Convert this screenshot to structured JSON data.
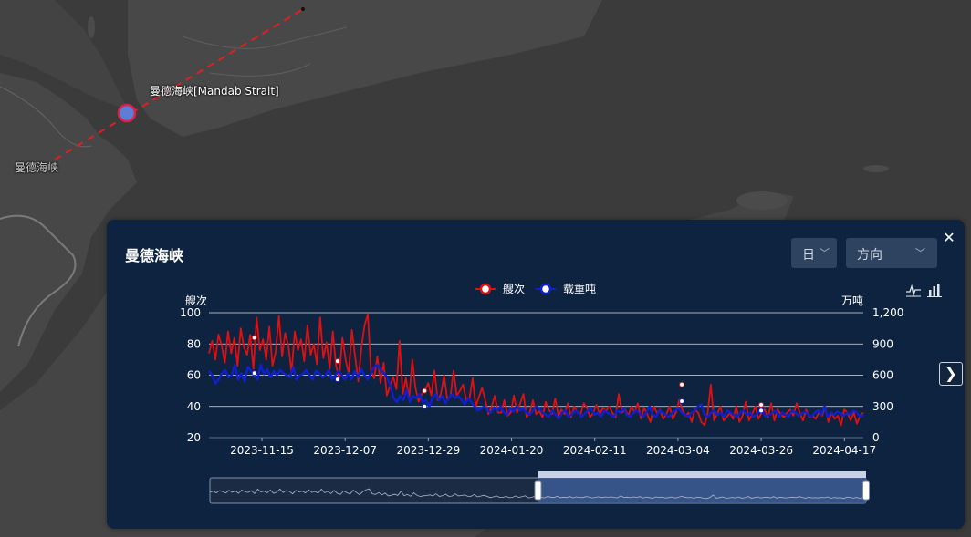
{
  "map": {
    "strait_label": "曼德海峡[Mandab Strait]",
    "region_label": "曼德海峡"
  },
  "panel": {
    "title": "曼德海峡",
    "period_select": {
      "value": "日"
    },
    "direction_select": {
      "placeholder": "方向"
    },
    "close_icon": "close-icon",
    "next_icon": "chevron-right-icon",
    "toolbar": [
      "line-chart-icon",
      "bar-chart-icon"
    ]
  },
  "colors": {
    "ships": "#e01010",
    "tonnage": "#1020d0",
    "panel_bg": "#0d2340"
  },
  "chart_data": {
    "type": "line",
    "legend": [
      "艘次",
      "载重吨"
    ],
    "legend_placement": "top-center",
    "y_left_label": "艘次",
    "y_right_label": "万吨",
    "y_left_ticks": [
      "100",
      "80",
      "60",
      "40",
      "20"
    ],
    "y_right_ticks": [
      "1,200",
      "900",
      "600",
      "300",
      "0"
    ],
    "ylim_left": [
      20,
      100
    ],
    "ylim_right": [
      0,
      1200
    ],
    "x_ticks": [
      "2023-11-15",
      "2023-12-07",
      "2023-12-29",
      "2024-01-20",
      "2024-02-11",
      "2024-03-04",
      "2024-03-26",
      "2024-04-17"
    ],
    "x_range": [
      "2023-11-01",
      "2024-04-22"
    ],
    "grid": true,
    "series": [
      {
        "name": "艘次",
        "axis": "left",
        "values": [
          74,
          82,
          70,
          86,
          79,
          68,
          88,
          74,
          84,
          66,
          90,
          78,
          73,
          86,
          64,
          97,
          76,
          83,
          70,
          91,
          66,
          75,
          98,
          72,
          87,
          79,
          62,
          88,
          76,
          83,
          69,
          92,
          73,
          80,
          67,
          97,
          71,
          81,
          64,
          88,
          66,
          58,
          84,
          70,
          61,
          89,
          72,
          56,
          78,
          92,
          99,
          63,
          58,
          72,
          55,
          68,
          47,
          53,
          59,
          51,
          82,
          48,
          58,
          45,
          70,
          52,
          43,
          48,
          50,
          55,
          47,
          63,
          44,
          48,
          60,
          45,
          46,
          63,
          47,
          50,
          54,
          44,
          45,
          58,
          40,
          46,
          52,
          44,
          35,
          40,
          47,
          36,
          36,
          44,
          34,
          36,
          47,
          36,
          42,
          48,
          33,
          36,
          44,
          35,
          37,
          33,
          43,
          38,
          35,
          45,
          34,
          38,
          35,
          42,
          33,
          40,
          36,
          35,
          42,
          39,
          33,
          36,
          41,
          35,
          39,
          37,
          40,
          36,
          33,
          48,
          36,
          38,
          34,
          40,
          36,
          42,
          32,
          39,
          35,
          30,
          40,
          36,
          38,
          32,
          35,
          40,
          32,
          36,
          44,
          38,
          34,
          36,
          30,
          38,
          36,
          30,
          28,
          36,
          54,
          31,
          35,
          40,
          31,
          33,
          36,
          32,
          40,
          30,
          34,
          43,
          31,
          35,
          40,
          32,
          36,
          38,
          33,
          42,
          31,
          38,
          35,
          33,
          36,
          38,
          34,
          42,
          36,
          31,
          38,
          33,
          34,
          32,
          36,
          34,
          40,
          30,
          36,
          32,
          34,
          28,
          38,
          36,
          31,
          36,
          29,
          34,
          36
        ]
      },
      {
        "name": "载重吨",
        "axis": "right",
        "values": [
          640,
          600,
          520,
          560,
          620,
          650,
          580,
          600,
          700,
          560,
          620,
          540,
          680,
          640,
          600,
          560,
          700,
          610,
          660,
          580,
          640,
          600,
          650,
          620,
          600,
          580,
          680,
          560,
          600,
          610,
          650,
          600,
          560,
          640,
          620,
          580,
          600,
          650,
          560,
          600,
          640,
          600,
          560,
          620,
          560,
          640,
          580,
          660,
          600,
          560,
          620,
          680,
          700,
          650,
          620,
          580,
          500,
          380,
          340,
          400,
          360,
          460,
          340,
          400,
          380,
          420,
          340,
          360,
          300,
          380,
          420,
          360,
          400,
          330,
          380,
          420,
          380,
          400,
          360,
          320,
          380,
          340,
          300,
          260,
          280,
          300,
          260,
          240,
          290,
          260,
          300,
          240,
          220,
          280,
          250,
          300,
          260,
          280,
          240,
          220,
          260,
          300,
          280,
          240,
          220,
          200,
          260,
          220,
          180,
          240,
          260,
          200,
          220,
          260,
          240,
          200,
          230,
          260,
          280,
          220,
          240,
          200,
          260,
          240,
          220,
          200,
          260,
          240,
          280,
          220,
          200,
          240,
          260,
          230,
          200,
          240,
          300,
          220,
          200,
          260,
          240,
          220,
          200,
          240,
          260,
          280,
          240,
          220,
          200,
          240,
          260,
          300,
          320,
          220,
          200,
          240,
          260,
          220,
          240,
          200,
          260,
          240,
          220,
          200,
          240,
          260,
          220,
          240,
          200,
          220,
          260,
          240,
          200,
          220,
          240,
          260,
          200,
          240,
          220,
          200,
          260,
          240,
          210,
          230,
          250,
          220,
          200,
          240,
          260,
          220,
          300,
          200,
          240,
          220,
          250,
          230,
          210,
          240,
          220,
          260,
          240,
          200,
          220
        ]
      }
    ],
    "markers": [
      {
        "series": "艘次",
        "x": "2023-11-13",
        "y": 84
      },
      {
        "series": "艘次",
        "x": "2023-12-05",
        "y": 69
      },
      {
        "series": "艘次",
        "x": "2023-12-28",
        "y": 50
      },
      {
        "series": "艘次",
        "x": "2024-03-05",
        "y": 54
      },
      {
        "series": "艘次",
        "x": "2024-03-26",
        "y": 41
      },
      {
        "series": "载重吨",
        "x": "2023-11-13",
        "y": 620
      },
      {
        "series": "载重吨",
        "x": "2023-12-05",
        "y": 560
      },
      {
        "series": "载重吨",
        "x": "2023-12-28",
        "y": 300
      },
      {
        "series": "载重吨",
        "x": "2024-03-05",
        "y": 350
      },
      {
        "series": "载重吨",
        "x": "2024-03-26",
        "y": 260
      }
    ],
    "zoom_window": [
      0.5,
      1.0
    ]
  }
}
